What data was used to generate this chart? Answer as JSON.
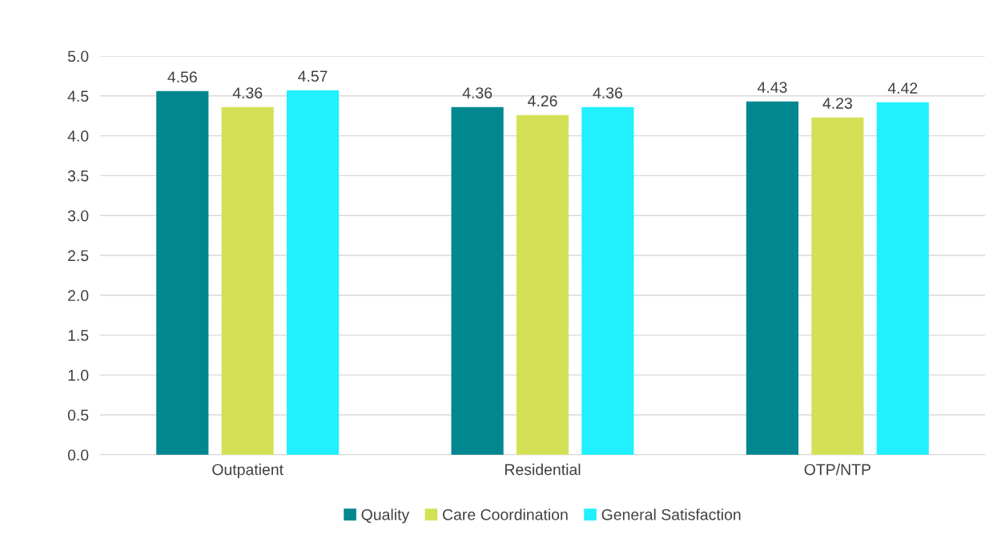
{
  "chart_data": {
    "type": "bar",
    "categories": [
      "Outpatient",
      "Residential",
      "OTP/NTP"
    ],
    "series": [
      {
        "name": "Quality",
        "color": "#00878f",
        "values": [
          4.56,
          4.36,
          4.43
        ]
      },
      {
        "name": "Care Coordination",
        "color": "#d4e157",
        "values": [
          4.36,
          4.26,
          4.23
        ]
      },
      {
        "name": "General Satisfaction",
        "color": "#21f0ff",
        "values": [
          4.57,
          4.36,
          4.42
        ]
      }
    ],
    "ylim": [
      0,
      5
    ],
    "yticks": [
      {
        "value": 0,
        "label": "0.0"
      },
      {
        "value": 0.5,
        "label": "0.5"
      },
      {
        "value": 1,
        "label": "1.0"
      },
      {
        "value": 1.5,
        "label": "1.5"
      },
      {
        "value": 2,
        "label": "2.0"
      },
      {
        "value": 2.5,
        "label": "2.5"
      },
      {
        "value": 3,
        "label": "3.0"
      },
      {
        "value": 3.5,
        "label": "3.5"
      },
      {
        "value": 4,
        "label": "4.0"
      },
      {
        "value": 4.5,
        "label": "4.5"
      },
      {
        "value": 5,
        "label": "5.0"
      }
    ],
    "grid": "y",
    "legend": "bottom",
    "data_labels": true
  }
}
